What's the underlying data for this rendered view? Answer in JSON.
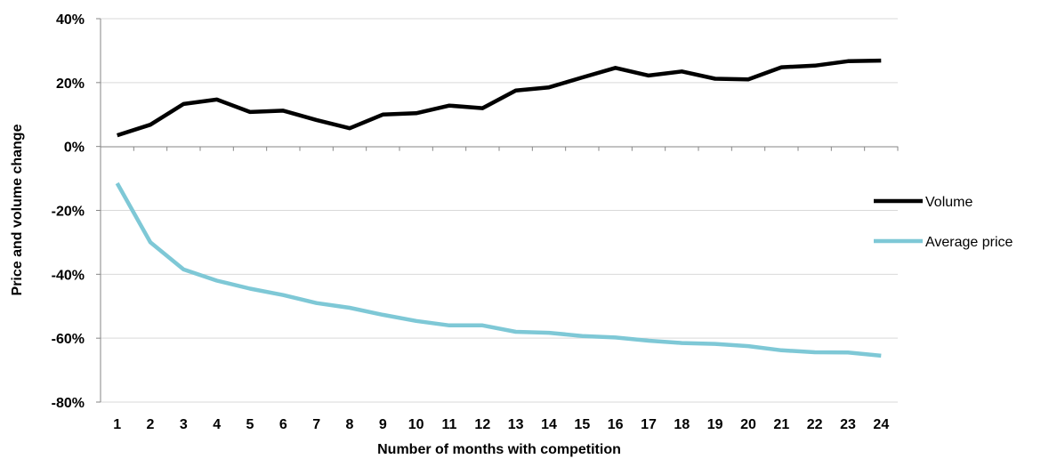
{
  "chart_data": {
    "type": "line",
    "xlabel": "Number of months with competition",
    "ylabel": "Price and volume change",
    "x": [
      1,
      2,
      3,
      4,
      5,
      6,
      7,
      8,
      9,
      10,
      11,
      12,
      13,
      14,
      15,
      16,
      17,
      18,
      19,
      20,
      21,
      22,
      23,
      24
    ],
    "ylim": [
      -80,
      40
    ],
    "yticks": [
      40,
      20,
      0,
      -20,
      -40,
      -60,
      -80
    ],
    "ytick_labels": [
      "40%",
      "20%",
      "0%",
      "-20%",
      "-40%",
      "-60%",
      "-80%"
    ],
    "grid": true,
    "legend": "right",
    "series": [
      {
        "name": "Volume",
        "color": "#000000",
        "values": [
          3.5,
          6.8,
          13.3,
          14.7,
          10.8,
          11.2,
          8.3,
          5.7,
          10.0,
          10.4,
          12.8,
          12.0,
          17.5,
          18.5,
          21.6,
          24.6,
          22.2,
          23.5,
          21.2,
          21.0,
          24.8,
          25.3,
          26.7,
          26.9
        ]
      },
      {
        "name": "Average price",
        "color": "#7ec8d6",
        "values": [
          -11.5,
          -30.0,
          -38.5,
          -42.0,
          -44.5,
          -46.5,
          -49.0,
          -50.5,
          -52.7,
          -54.6,
          -56.0,
          -56.0,
          -58.0,
          -58.3,
          -59.3,
          -59.8,
          -60.8,
          -61.5,
          -61.8,
          -62.5,
          -63.8,
          -64.4,
          -64.5,
          -65.5
        ]
      }
    ]
  }
}
